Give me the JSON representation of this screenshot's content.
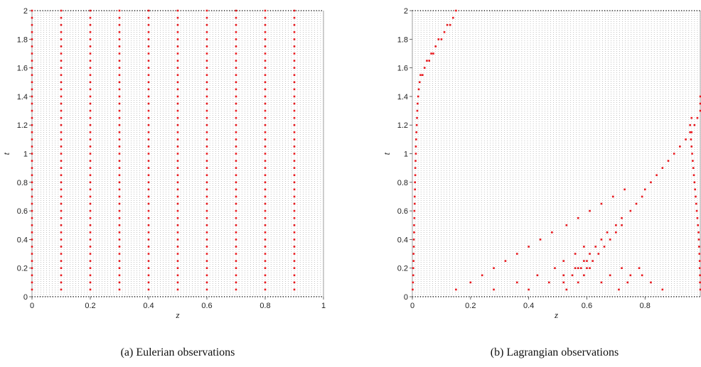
{
  "chart_data": [
    {
      "type": "scatter",
      "title": "",
      "caption": "(a) Eulerian observations",
      "xlabel": "z",
      "ylabel": "t",
      "xlim": [
        0,
        1
      ],
      "ylim": [
        0,
        2
      ],
      "xticks": [
        0,
        0.2,
        0.4,
        0.6,
        0.8,
        1
      ],
      "xtick_labels": [
        "0",
        "0.2",
        "0.4",
        "0.6",
        "0.8",
        "1"
      ],
      "yticks": [
        0,
        0.2,
        0.4,
        0.6,
        0.8,
        1,
        1.2,
        1.4,
        1.6,
        1.8,
        2
      ],
      "ytick_labels": [
        "0",
        "0.2",
        "0.4",
        "0.6",
        "0.8",
        "1",
        "1.2",
        "1.4",
        "1.6",
        "1.8",
        "2"
      ],
      "grid": "dense dotted mesh",
      "observation_color": "#e8191e",
      "mesh_color": "#9a9a9a",
      "series": [
        {
          "z": 0.0,
          "t_start": 0.05,
          "t_end": 2.0,
          "t_step": 0.05
        },
        {
          "z": 0.1,
          "t_start": 0.05,
          "t_end": 2.0,
          "t_step": 0.05
        },
        {
          "z": 0.2,
          "t_start": 0.05,
          "t_end": 2.0,
          "t_step": 0.05
        },
        {
          "z": 0.3,
          "t_start": 0.05,
          "t_end": 2.0,
          "t_step": 0.05
        },
        {
          "z": 0.4,
          "t_start": 0.05,
          "t_end": 2.0,
          "t_step": 0.05
        },
        {
          "z": 0.5,
          "t_start": 0.05,
          "t_end": 2.0,
          "t_step": 0.05
        },
        {
          "z": 0.6,
          "t_start": 0.05,
          "t_end": 2.0,
          "t_step": 0.05
        },
        {
          "z": 0.7,
          "t_start": 0.05,
          "t_end": 2.0,
          "t_step": 0.05
        },
        {
          "z": 0.8,
          "t_start": 0.05,
          "t_end": 2.0,
          "t_step": 0.05
        },
        {
          "z": 0.9,
          "t_start": 0.05,
          "t_end": 2.0,
          "t_step": 0.05
        }
      ]
    },
    {
      "type": "scatter",
      "title": "",
      "caption": "(b) Lagrangian observations",
      "xlabel": "z",
      "ylabel": "t",
      "xlim": [
        0,
        0.99
      ],
      "ylim": [
        0,
        2
      ],
      "xticks": [
        0,
        0.2,
        0.4,
        0.6,
        0.8
      ],
      "xtick_labels": [
        "0",
        "0.2",
        "0.4",
        "0.6",
        "0.8"
      ],
      "yticks": [
        0,
        0.2,
        0.4,
        0.6,
        0.8,
        1,
        1.2,
        1.4,
        1.6,
        1.8,
        2
      ],
      "ytick_labels": [
        "0",
        "0.2",
        "0.4",
        "0.6",
        "0.8",
        "1",
        "1.2",
        "1.4",
        "1.6",
        "1.8",
        "2"
      ],
      "grid": "dense dotted mesh",
      "observation_color": "#e8191e",
      "mesh_color": "#9a9a9a",
      "points": [
        [
          0.001,
          0.05
        ],
        [
          0.002,
          0.1
        ],
        [
          0.003,
          0.15
        ],
        [
          0.003,
          0.2
        ],
        [
          0.004,
          0.25
        ],
        [
          0.004,
          0.3
        ],
        [
          0.005,
          0.35
        ],
        [
          0.005,
          0.4
        ],
        [
          0.006,
          0.45
        ],
        [
          0.006,
          0.5
        ],
        [
          0.007,
          0.55
        ],
        [
          0.007,
          0.6
        ],
        [
          0.008,
          0.65
        ],
        [
          0.008,
          0.7
        ],
        [
          0.009,
          0.75
        ],
        [
          0.009,
          0.8
        ],
        [
          0.01,
          0.85
        ],
        [
          0.01,
          0.9
        ],
        [
          0.011,
          0.95
        ],
        [
          0.012,
          1.0
        ],
        [
          0.012,
          1.05
        ],
        [
          0.013,
          1.1
        ],
        [
          0.014,
          1.15
        ],
        [
          0.015,
          1.2
        ],
        [
          0.016,
          1.25
        ],
        [
          0.017,
          1.3
        ],
        [
          0.018,
          1.35
        ],
        [
          0.02,
          1.4
        ],
        [
          0.022,
          1.45
        ],
        [
          0.025,
          1.5
        ],
        [
          0.028,
          1.55
        ],
        [
          0.035,
          1.55
        ],
        [
          0.042,
          1.6
        ],
        [
          0.05,
          1.65
        ],
        [
          0.058,
          1.65
        ],
        [
          0.065,
          1.7
        ],
        [
          0.072,
          1.7
        ],
        [
          0.08,
          1.75
        ],
        [
          0.09,
          1.8
        ],
        [
          0.1,
          1.8
        ],
        [
          0.11,
          1.85
        ],
        [
          0.12,
          1.9
        ],
        [
          0.13,
          1.9
        ],
        [
          0.14,
          1.95
        ],
        [
          0.15,
          2.0
        ],
        [
          0.15,
          0.05
        ],
        [
          0.2,
          0.1
        ],
        [
          0.24,
          0.15
        ],
        [
          0.28,
          0.2
        ],
        [
          0.32,
          0.25
        ],
        [
          0.36,
          0.3
        ],
        [
          0.4,
          0.35
        ],
        [
          0.44,
          0.4
        ],
        [
          0.48,
          0.45
        ],
        [
          0.53,
          0.5
        ],
        [
          0.57,
          0.55
        ],
        [
          0.61,
          0.6
        ],
        [
          0.65,
          0.65
        ],
        [
          0.69,
          0.7
        ],
        [
          0.73,
          0.75
        ],
        [
          0.28,
          0.05
        ],
        [
          0.36,
          0.1
        ],
        [
          0.43,
          0.15
        ],
        [
          0.49,
          0.2
        ],
        [
          0.52,
          0.25
        ],
        [
          0.56,
          0.3
        ],
        [
          0.59,
          0.35
        ],
        [
          0.4,
          0.05
        ],
        [
          0.47,
          0.1
        ],
        [
          0.52,
          0.15
        ],
        [
          0.56,
          0.2
        ],
        [
          0.58,
          0.2
        ],
        [
          0.6,
          0.2
        ],
        [
          0.6,
          0.25
        ],
        [
          0.61,
          0.3
        ],
        [
          0.63,
          0.35
        ],
        [
          0.65,
          0.4
        ],
        [
          0.67,
          0.45
        ],
        [
          0.7,
          0.5
        ],
        [
          0.72,
          0.55
        ],
        [
          0.75,
          0.6
        ],
        [
          0.77,
          0.65
        ],
        [
          0.79,
          0.7
        ],
        [
          0.8,
          0.75
        ],
        [
          0.82,
          0.8
        ],
        [
          0.84,
          0.85
        ],
        [
          0.86,
          0.9
        ],
        [
          0.88,
          0.95
        ],
        [
          0.9,
          1.0
        ],
        [
          0.92,
          1.05
        ],
        [
          0.94,
          1.1
        ],
        [
          0.96,
          1.15
        ],
        [
          0.97,
          1.2
        ],
        [
          0.98,
          1.25
        ],
        [
          0.99,
          1.3
        ],
        [
          0.99,
          1.35
        ],
        [
          0.99,
          1.4
        ],
        [
          0.53,
          0.05
        ],
        [
          0.57,
          0.1
        ],
        [
          0.59,
          0.15
        ],
        [
          0.61,
          0.2
        ],
        [
          0.62,
          0.25
        ],
        [
          0.64,
          0.3
        ],
        [
          0.66,
          0.35
        ],
        [
          0.68,
          0.4
        ],
        [
          0.7,
          0.45
        ],
        [
          0.72,
          0.5
        ],
        [
          0.52,
          0.1
        ],
        [
          0.55,
          0.15
        ],
        [
          0.57,
          0.2
        ],
        [
          0.59,
          0.25
        ],
        [
          0.65,
          0.1
        ],
        [
          0.68,
          0.15
        ],
        [
          0.72,
          0.2
        ],
        [
          0.75,
          0.15
        ],
        [
          0.78,
          0.2
        ],
        [
          0.71,
          0.05
        ],
        [
          0.74,
          0.1
        ],
        [
          0.79,
          0.15
        ],
        [
          0.82,
          0.1
        ],
        [
          0.86,
          0.05
        ],
        [
          0.96,
          1.25
        ],
        [
          0.955,
          1.2
        ],
        [
          0.955,
          1.15
        ],
        [
          0.958,
          1.1
        ],
        [
          0.96,
          1.05
        ],
        [
          0.962,
          1.0
        ],
        [
          0.964,
          0.95
        ],
        [
          0.966,
          0.9
        ],
        [
          0.968,
          0.85
        ],
        [
          0.97,
          0.8
        ],
        [
          0.972,
          0.75
        ],
        [
          0.974,
          0.7
        ],
        [
          0.976,
          0.65
        ],
        [
          0.978,
          0.6
        ],
        [
          0.98,
          0.55
        ],
        [
          0.982,
          0.5
        ],
        [
          0.984,
          0.45
        ],
        [
          0.985,
          0.4
        ],
        [
          0.986,
          0.35
        ],
        [
          0.987,
          0.3
        ],
        [
          0.988,
          0.25
        ],
        [
          0.988,
          0.2
        ],
        [
          0.989,
          0.15
        ],
        [
          0.989,
          0.1
        ],
        [
          0.99,
          0.05
        ]
      ]
    }
  ]
}
